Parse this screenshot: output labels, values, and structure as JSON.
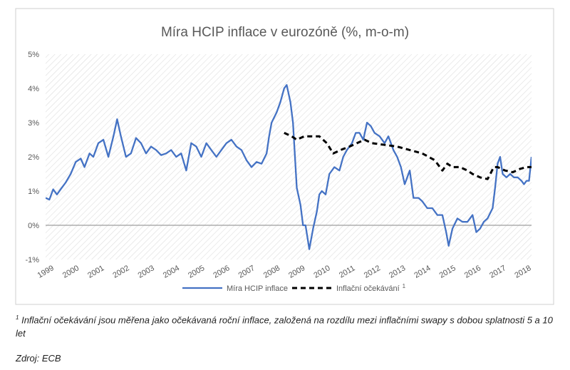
{
  "chart_data": {
    "type": "line",
    "title": "Míra HCIP inflace v eurozóně (%, m-o-m)",
    "y_ticks": [
      "5%",
      "4%",
      "3%",
      "2%",
      "1%",
      "0%",
      "-1%"
    ],
    "ylim": [
      -1,
      5
    ],
    "x_ticks": [
      "1999",
      "2000",
      "2001",
      "2002",
      "2003",
      "2004",
      "2005",
      "2006",
      "2007",
      "2008",
      "2009",
      "2010",
      "2011",
      "2012",
      "2013",
      "2014",
      "2015",
      "2016",
      "2017",
      "2018"
    ],
    "xlim": [
      1999.0,
      2018.35
    ],
    "grid": true,
    "legend_position": "bottom-center",
    "series": [
      {
        "name": "Míra HCIP inflace",
        "style": "solid",
        "color": "#4472c4",
        "points": [
          [
            1999.0,
            0.8
          ],
          [
            1999.15,
            0.75
          ],
          [
            1999.3,
            1.05
          ],
          [
            1999.45,
            0.9
          ],
          [
            1999.6,
            1.05
          ],
          [
            1999.8,
            1.25
          ],
          [
            2000.0,
            1.5
          ],
          [
            2000.2,
            1.85
          ],
          [
            2000.4,
            1.95
          ],
          [
            2000.55,
            1.7
          ],
          [
            2000.75,
            2.1
          ],
          [
            2000.9,
            2.0
          ],
          [
            2001.1,
            2.4
          ],
          [
            2001.3,
            2.5
          ],
          [
            2001.5,
            2.0
          ],
          [
            2001.7,
            2.6
          ],
          [
            2001.85,
            3.1
          ],
          [
            2002.0,
            2.6
          ],
          [
            2002.2,
            2.0
          ],
          [
            2002.4,
            2.1
          ],
          [
            2002.6,
            2.55
          ],
          [
            2002.8,
            2.4
          ],
          [
            2003.0,
            2.1
          ],
          [
            2003.2,
            2.3
          ],
          [
            2003.4,
            2.2
          ],
          [
            2003.6,
            2.05
          ],
          [
            2003.8,
            2.1
          ],
          [
            2004.0,
            2.2
          ],
          [
            2004.2,
            2.0
          ],
          [
            2004.4,
            2.1
          ],
          [
            2004.6,
            1.6
          ],
          [
            2004.8,
            2.4
          ],
          [
            2005.0,
            2.3
          ],
          [
            2005.2,
            2.0
          ],
          [
            2005.4,
            2.4
          ],
          [
            2005.6,
            2.2
          ],
          [
            2005.8,
            2.0
          ],
          [
            2006.0,
            2.2
          ],
          [
            2006.2,
            2.4
          ],
          [
            2006.4,
            2.5
          ],
          [
            2006.6,
            2.3
          ],
          [
            2006.8,
            2.2
          ],
          [
            2007.0,
            1.9
          ],
          [
            2007.2,
            1.7
          ],
          [
            2007.4,
            1.85
          ],
          [
            2007.6,
            1.8
          ],
          [
            2007.8,
            2.1
          ],
          [
            2007.9,
            2.6
          ],
          [
            2008.0,
            3.0
          ],
          [
            2008.2,
            3.3
          ],
          [
            2008.35,
            3.6
          ],
          [
            2008.5,
            4.0
          ],
          [
            2008.6,
            4.1
          ],
          [
            2008.75,
            3.6
          ],
          [
            2008.85,
            3.0
          ],
          [
            2009.0,
            1.1
          ],
          [
            2009.15,
            0.6
          ],
          [
            2009.25,
            0.0
          ],
          [
            2009.35,
            0.0
          ],
          [
            2009.5,
            -0.7
          ],
          [
            2009.65,
            -0.1
          ],
          [
            2009.8,
            0.4
          ],
          [
            2009.9,
            0.9
          ],
          [
            2010.0,
            1.0
          ],
          [
            2010.15,
            0.9
          ],
          [
            2010.3,
            1.5
          ],
          [
            2010.5,
            1.7
          ],
          [
            2010.7,
            1.6
          ],
          [
            2010.85,
            2.0
          ],
          [
            2011.0,
            2.2
          ],
          [
            2011.2,
            2.4
          ],
          [
            2011.35,
            2.7
          ],
          [
            2011.5,
            2.7
          ],
          [
            2011.65,
            2.5
          ],
          [
            2011.8,
            3.0
          ],
          [
            2011.95,
            2.9
          ],
          [
            2012.1,
            2.7
          ],
          [
            2012.3,
            2.6
          ],
          [
            2012.5,
            2.4
          ],
          [
            2012.65,
            2.6
          ],
          [
            2012.85,
            2.2
          ],
          [
            2013.0,
            2.0
          ],
          [
            2013.15,
            1.7
          ],
          [
            2013.3,
            1.2
          ],
          [
            2013.5,
            1.6
          ],
          [
            2013.65,
            0.8
          ],
          [
            2013.85,
            0.8
          ],
          [
            2014.0,
            0.7
          ],
          [
            2014.2,
            0.5
          ],
          [
            2014.4,
            0.5
          ],
          [
            2014.6,
            0.3
          ],
          [
            2014.8,
            0.3
          ],
          [
            2014.95,
            -0.2
          ],
          [
            2015.05,
            -0.6
          ],
          [
            2015.2,
            -0.1
          ],
          [
            2015.4,
            0.2
          ],
          [
            2015.6,
            0.1
          ],
          [
            2015.8,
            0.1
          ],
          [
            2016.0,
            0.3
          ],
          [
            2016.15,
            -0.2
          ],
          [
            2016.3,
            -0.1
          ],
          [
            2016.45,
            0.1
          ],
          [
            2016.6,
            0.2
          ],
          [
            2016.8,
            0.5
          ],
          [
            2016.9,
            1.1
          ],
          [
            2017.0,
            1.8
          ],
          [
            2017.1,
            2.0
          ],
          [
            2017.2,
            1.5
          ],
          [
            2017.35,
            1.4
          ],
          [
            2017.5,
            1.5
          ],
          [
            2017.65,
            1.4
          ],
          [
            2017.8,
            1.4
          ],
          [
            2017.95,
            1.3
          ],
          [
            2018.05,
            1.2
          ],
          [
            2018.15,
            1.3
          ],
          [
            2018.25,
            1.3
          ],
          [
            2018.35,
            2.0
          ]
        ]
      },
      {
        "name": "Inflační očekávání",
        "name_sup": "1",
        "style": "dashed",
        "color": "#000000",
        "points": [
          [
            2008.5,
            2.7
          ],
          [
            2008.8,
            2.6
          ],
          [
            2009.0,
            2.5
          ],
          [
            2009.3,
            2.6
          ],
          [
            2009.6,
            2.6
          ],
          [
            2009.9,
            2.6
          ],
          [
            2010.2,
            2.4
          ],
          [
            2010.45,
            2.1
          ],
          [
            2010.75,
            2.2
          ],
          [
            2011.1,
            2.3
          ],
          [
            2011.4,
            2.4
          ],
          [
            2011.7,
            2.5
          ],
          [
            2012.0,
            2.4
          ],
          [
            2012.5,
            2.35
          ],
          [
            2013.0,
            2.3
          ],
          [
            2013.5,
            2.2
          ],
          [
            2014.0,
            2.1
          ],
          [
            2014.5,
            1.9
          ],
          [
            2014.8,
            1.6
          ],
          [
            2015.0,
            1.8
          ],
          [
            2015.2,
            1.7
          ],
          [
            2015.5,
            1.7
          ],
          [
            2015.8,
            1.6
          ],
          [
            2016.0,
            1.5
          ],
          [
            2016.3,
            1.4
          ],
          [
            2016.6,
            1.35
          ],
          [
            2016.85,
            1.7
          ],
          [
            2017.0,
            1.7
          ],
          [
            2017.3,
            1.6
          ],
          [
            2017.6,
            1.55
          ],
          [
            2017.9,
            1.65
          ],
          [
            2018.15,
            1.7
          ],
          [
            2018.35,
            1.7
          ]
        ]
      }
    ]
  },
  "footnote": {
    "sup": "1",
    "text": "Inflační očekávání jsou měřena jako očekávaná roční inflace, založená na rozdílu mezi inflačními swapy s dobou splatnosti 5 a 10 let"
  },
  "source": "Zdroj: ECB"
}
